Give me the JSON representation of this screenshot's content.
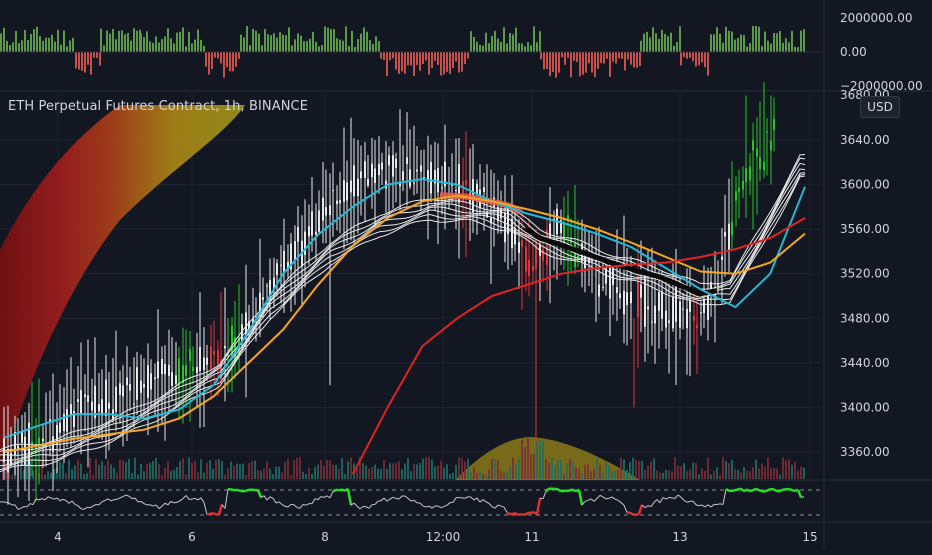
{
  "chart_title": "ETH Perpetual Futures Contract, 1h, BINANCE",
  "currency_badge": "USD",
  "colors": {
    "background": "#131722",
    "bull": "#26c626",
    "bear": "#e03535",
    "neutral": "#e8e8e8",
    "cyan": "#26b8d4",
    "orange": "#f5a623",
    "red_ma": "#e02424",
    "grid": "#1e2330"
  },
  "chart_data": [
    {
      "type": "bar",
      "panel": "top-histogram",
      "yticks": [
        2000000,
        0,
        -2000000
      ],
      "ytick_labels": [
        "2000000.00",
        "0.00",
        "−2000000.00"
      ],
      "ylim": [
        -2600000,
        3000000
      ]
    },
    {
      "type": "line",
      "panel": "main",
      "xtick_labels": [
        "4",
        "6",
        "8",
        "12:00",
        "11",
        "13",
        "15"
      ],
      "yticks": [
        3360,
        3400,
        3440,
        3480,
        3520,
        3560,
        3600,
        3640
      ],
      "ytick_labels": [
        "3360.00",
        "3400.00",
        "3440.00",
        "3480.00",
        "3520.00",
        "3560.00",
        "3600.00",
        "3640.00"
      ],
      "last_price_label": "3680.00",
      "ylim": [
        3330,
        3690
      ],
      "series": [
        {
          "color": "#26b8d4",
          "values": [
            3373,
            3384,
            3394,
            3394,
            3390,
            3398,
            3420,
            3468,
            3520,
            3555,
            3580,
            3600,
            3605,
            3600,
            3585,
            3574,
            3566,
            3556,
            3544,
            3525,
            3506,
            3490,
            3520,
            3598
          ]
        },
        {
          "color": "#f5a623",
          "values": [
            3360,
            3366,
            3372,
            3376,
            3380,
            3390,
            3410,
            3440,
            3470,
            3510,
            3545,
            3570,
            3585,
            3590,
            3585,
            3578,
            3570,
            3560,
            3548,
            3535,
            3522,
            3520,
            3530,
            3556
          ]
        },
        {
          "color": "#e02424",
          "values": [
            null,
            null,
            null,
            null,
            null,
            null,
            null,
            null,
            null,
            null,
            3340,
            3400,
            3455,
            3480,
            3500,
            3510,
            3520,
            3525,
            3528,
            3530,
            3535,
            3542,
            3552,
            3570
          ]
        }
      ]
    },
    {
      "type": "line",
      "panel": "oscillator",
      "threshold_lines": "dashed-upper-and-lower"
    }
  ]
}
